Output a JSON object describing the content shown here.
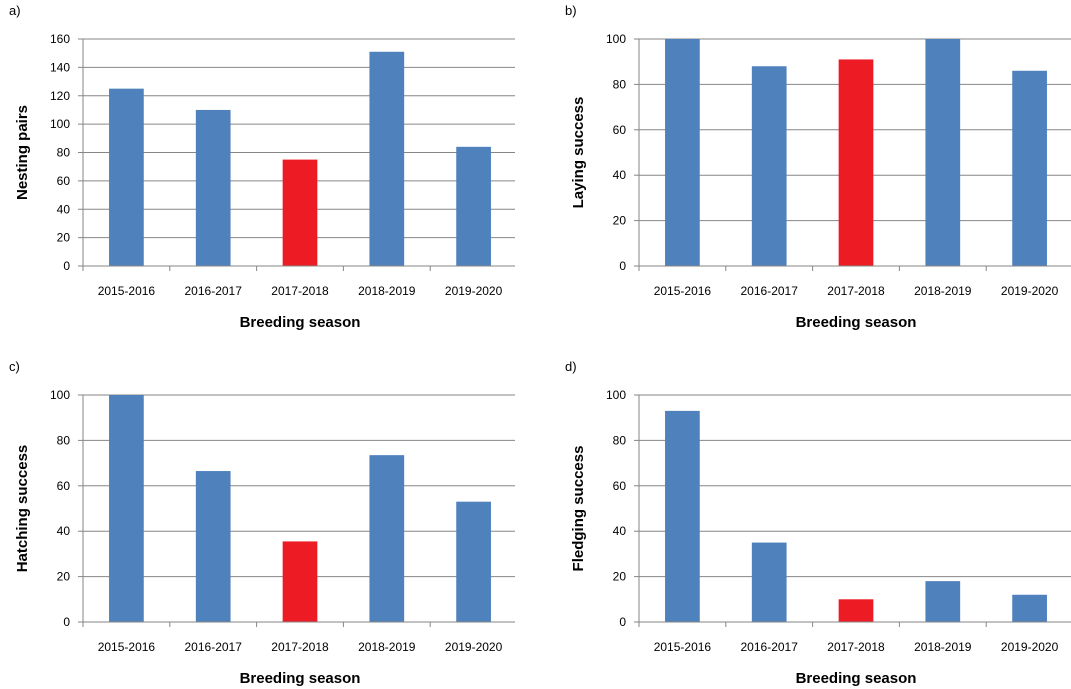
{
  "colors": {
    "bar": "#4f81bd",
    "highlight": "#ed1c24",
    "grid": "#868686",
    "axis": "#868686"
  },
  "chart_data": [
    {
      "type": "bar",
      "panel_label": "a)",
      "categories": [
        "2015-2016",
        "2016-2017",
        "2017-2018",
        "2018-2019",
        "2019-2020"
      ],
      "values": [
        125,
        110,
        75,
        151,
        84
      ],
      "highlight_index": 2,
      "xlabel": "Breeding season",
      "ylabel": "Nesting pairs",
      "ylim": [
        0,
        160
      ],
      "yticks": [
        0,
        20,
        40,
        60,
        80,
        100,
        120,
        140,
        160
      ],
      "grid": true
    },
    {
      "type": "bar",
      "panel_label": "b)",
      "categories": [
        "2015-2016",
        "2016-2017",
        "2017-2018",
        "2018-2019",
        "2019-2020"
      ],
      "values": [
        100,
        88,
        91,
        100,
        86
      ],
      "highlight_index": 2,
      "xlabel": "Breeding season",
      "ylabel": "Laying success",
      "ylim": [
        0,
        100
      ],
      "yticks": [
        0,
        20,
        40,
        60,
        80,
        100
      ],
      "grid": true
    },
    {
      "type": "bar",
      "panel_label": "c)",
      "categories": [
        "2015-2016",
        "2016-2017",
        "2017-2018",
        "2018-2019",
        "2019-2020"
      ],
      "values": [
        100,
        66.5,
        35.5,
        73.5,
        53
      ],
      "highlight_index": 2,
      "xlabel": "Breeding season",
      "ylabel": "Hatching success",
      "ylim": [
        0,
        100
      ],
      "yticks": [
        0,
        20,
        40,
        60,
        80,
        100
      ],
      "grid": true
    },
    {
      "type": "bar",
      "panel_label": "d)",
      "categories": [
        "2015-2016",
        "2016-2017",
        "2017-2018",
        "2018-2019",
        "2019-2020"
      ],
      "values": [
        93,
        35,
        10,
        18,
        12
      ],
      "highlight_index": 2,
      "xlabel": "Breeding season",
      "ylabel": "Fledging success",
      "ylim": [
        0,
        100
      ],
      "yticks": [
        0,
        20,
        40,
        60,
        80,
        100
      ],
      "grid": true
    }
  ]
}
